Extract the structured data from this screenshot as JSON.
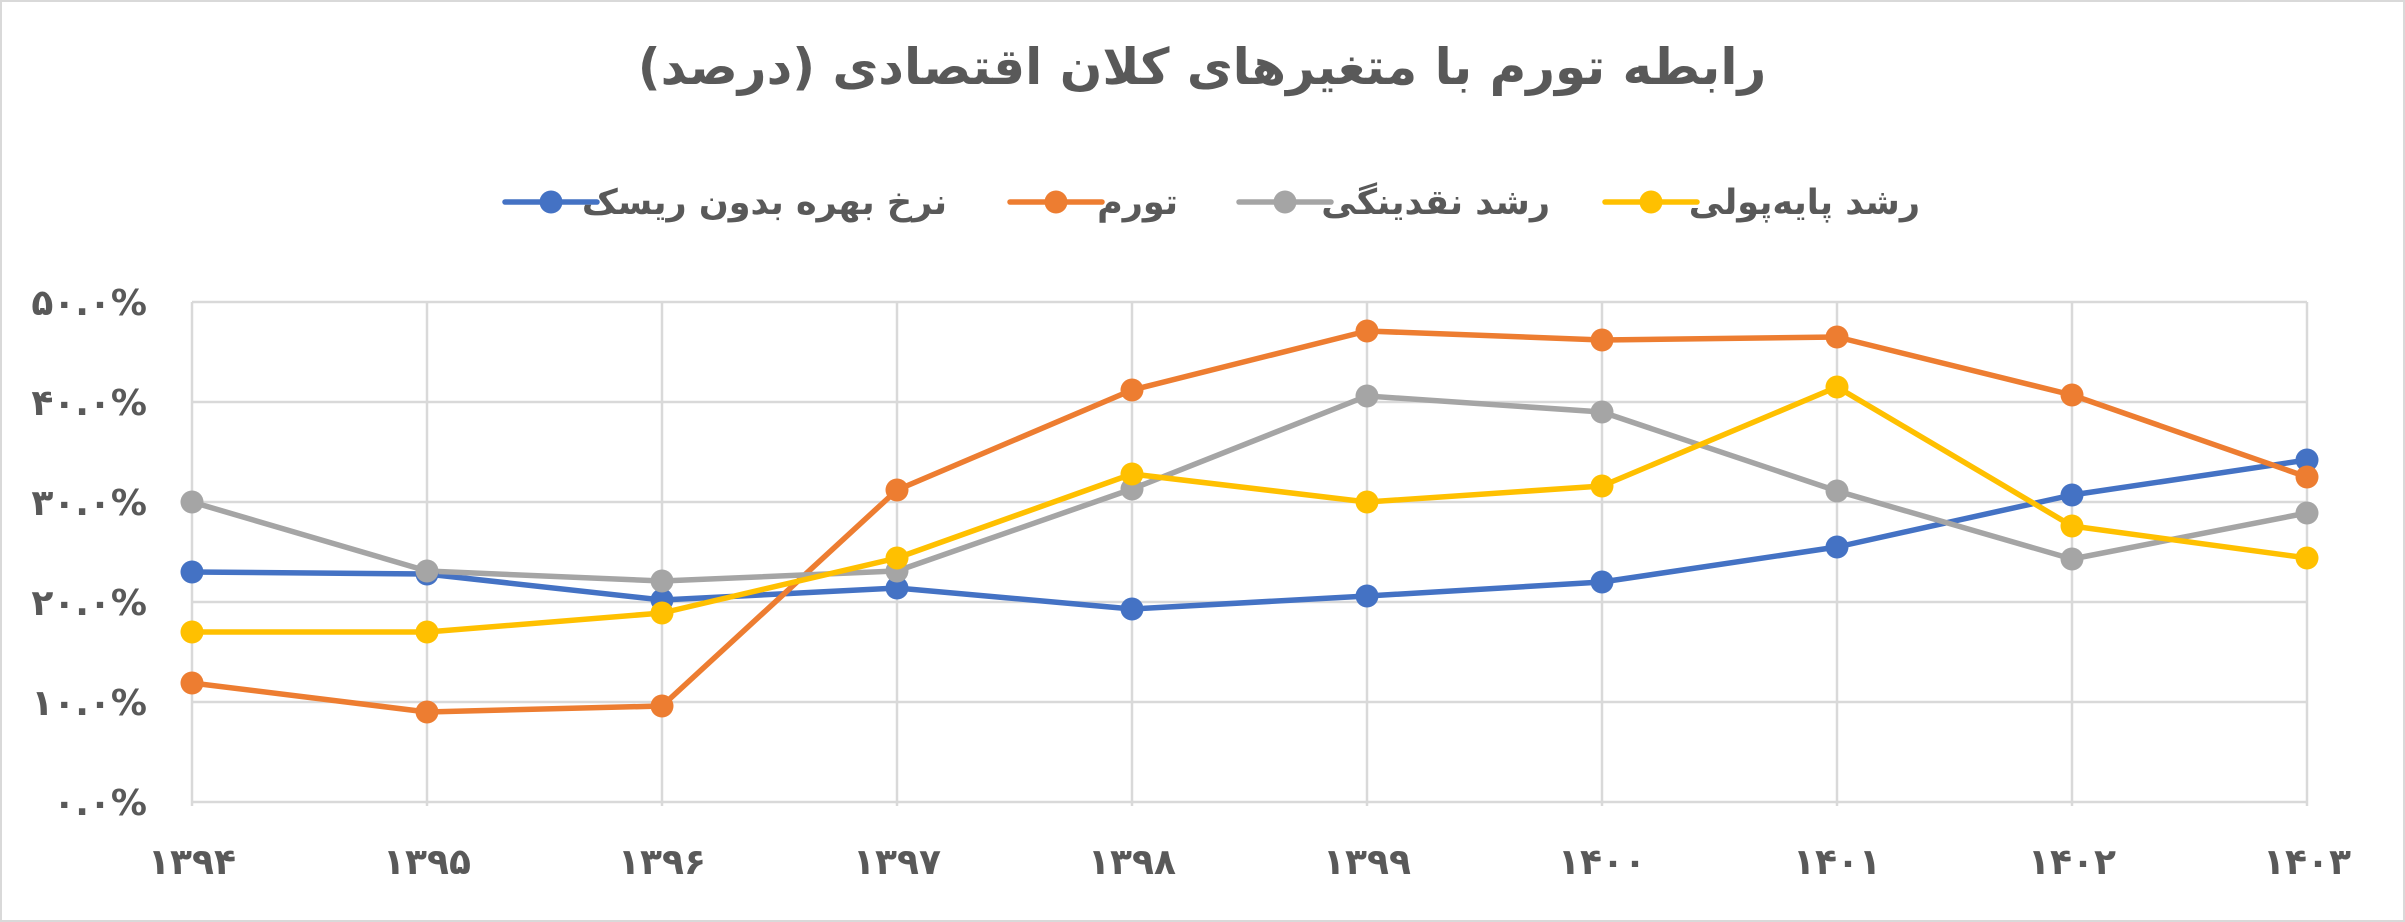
{
  "chart_data": {
    "type": "line",
    "title": "رابطه تورم با متغیرهای کلان اقتصادی (درصد)",
    "xlabel": "",
    "ylabel": "",
    "categories": [
      "۱۳۹۴",
      "۱۳۹۵",
      "۱۳۹۶",
      "۱۳۹۷",
      "۱۳۹۸",
      "۱۳۹۹",
      "۱۴۰۰",
      "۱۴۰۱",
      "۱۴۰۲",
      "۱۴۰۳"
    ],
    "y_ticks": [
      "۰.۰%",
      "۱۰.۰%",
      "۲۰.۰%",
      "۳۰.۰%",
      "۴۰.۰%",
      "۵۰.۰%"
    ],
    "ylim": [
      0,
      50
    ],
    "grid": true,
    "legend_position": "top",
    "series": [
      {
        "name": "نرخ بهره بدون ریسک",
        "color": "#4472C4",
        "values": [
          23.0,
          22.8,
          20.2,
          21.4,
          19.3,
          20.6,
          22.0,
          25.5,
          30.7,
          34.2
        ]
      },
      {
        "name": "تورم",
        "color": "#ED7D31",
        "values": [
          11.9,
          9.0,
          9.6,
          31.2,
          41.2,
          47.1,
          46.2,
          46.5,
          40.7,
          32.5
        ]
      },
      {
        "name": "رشد نقدینگی",
        "color": "#A5A5A5",
        "values": [
          30.0,
          23.1,
          22.1,
          23.1,
          31.3,
          40.6,
          39.0,
          31.1,
          24.3,
          28.9
        ]
      },
      {
        "name": "رشد پایه‌پولی",
        "color": "#FFC000",
        "values": [
          17.0,
          17.0,
          18.9,
          24.4,
          32.8,
          30.0,
          31.6,
          41.5,
          27.6,
          24.4
        ]
      }
    ]
  }
}
